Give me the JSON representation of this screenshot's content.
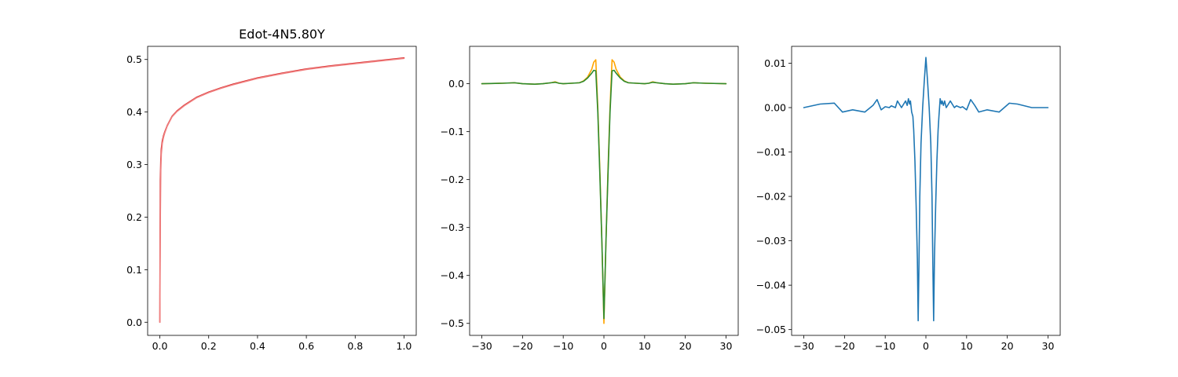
{
  "chart_data": [
    {
      "type": "line",
      "title": "Edot-4N5.80Y",
      "xlim": [
        -0.05,
        1.05
      ],
      "ylim": [
        -0.025,
        0.525
      ],
      "xticks": [
        0.0,
        0.2,
        0.4,
        0.6,
        0.8,
        1.0
      ],
      "yticks": [
        0.0,
        0.1,
        0.2,
        0.3,
        0.4,
        0.5
      ],
      "xtick_labels": [
        "0.0",
        "0.2",
        "0.4",
        "0.6",
        "0.8",
        "1.0"
      ],
      "ytick_labels": [
        "0.0",
        "0.1",
        "0.2",
        "0.3",
        "0.4",
        "0.5"
      ],
      "series": [
        {
          "color": "#d62728",
          "x": [
            0,
            0.001,
            0.002,
            0.004,
            0.006,
            0.01,
            0.015,
            0.02,
            0.03,
            0.05,
            0.07,
            0.1,
            0.15,
            0.2,
            0.25,
            0.3,
            0.4,
            0.5,
            0.6,
            0.7,
            0.8,
            0.9,
            1.0
          ],
          "y": [
            0.0,
            0.18,
            0.27,
            0.31,
            0.33,
            0.345,
            0.355,
            0.362,
            0.374,
            0.392,
            0.402,
            0.413,
            0.428,
            0.438,
            0.446,
            0.453,
            0.465,
            0.474,
            0.482,
            0.488,
            0.493,
            0.498,
            0.503
          ]
        },
        {
          "color": "#f08080",
          "x": [
            0,
            0.002,
            0.004,
            0.006,
            0.01,
            0.015,
            0.02,
            0.03,
            0.05,
            0.07,
            0.1,
            0.15,
            0.2,
            0.25,
            0.3,
            0.4,
            0.5,
            0.6,
            0.7,
            0.8,
            0.9,
            1.0
          ],
          "y": [
            0.0,
            0.2,
            0.29,
            0.32,
            0.34,
            0.352,
            0.36,
            0.373,
            0.391,
            0.401,
            0.412,
            0.427,
            0.437,
            0.445,
            0.452,
            0.464,
            0.473,
            0.481,
            0.487,
            0.492,
            0.497,
            0.502
          ]
        }
      ]
    },
    {
      "type": "line",
      "xlim": [
        -33,
        33
      ],
      "ylim": [
        -0.525,
        0.078
      ],
      "xticks": [
        -30,
        -20,
        -10,
        0,
        10,
        20,
        30
      ],
      "yticks": [
        -0.5,
        -0.4,
        -0.3,
        -0.2,
        -0.1,
        0.0
      ],
      "xtick_labels": [
        "−30",
        "−20",
        "−10",
        "0",
        "10",
        "20",
        "30"
      ],
      "ytick_labels": [
        "−0.5",
        "−0.4",
        "−0.3",
        "−0.2",
        "−0.1",
        "0.0"
      ],
      "series": [
        {
          "color": "#ffa500",
          "x": [
            -30,
            -25,
            -22,
            -20,
            -17,
            -15,
            -13,
            -12,
            -11,
            -10,
            -8,
            -6,
            -5,
            -4,
            -3,
            -2.5,
            -2,
            -1.5,
            -1,
            -0.5,
            0,
            0.5,
            1,
            1.5,
            2,
            2.5,
            3,
            4,
            5,
            6,
            8,
            10,
            11,
            12,
            13,
            15,
            17,
            20,
            22,
            25,
            30
          ],
          "y": [
            0.0,
            0.001,
            0.002,
            0.0,
            -0.001,
            0.0,
            0.002,
            0.004,
            0.001,
            0.0,
            0.001,
            0.002,
            0.006,
            0.014,
            0.03,
            0.045,
            0.05,
            -0.05,
            -0.18,
            -0.33,
            -0.5,
            -0.33,
            -0.18,
            -0.05,
            0.05,
            0.045,
            0.03,
            0.014,
            0.006,
            0.002,
            0.001,
            0.0,
            0.001,
            0.004,
            0.002,
            0.0,
            -0.001,
            0.0,
            0.002,
            0.001,
            0.0
          ]
        },
        {
          "color": "#2e8b2e",
          "x": [
            -30,
            -25,
            -22,
            -20,
            -17,
            -15,
            -13,
            -12,
            -11,
            -10,
            -8,
            -6,
            -5,
            -4,
            -3,
            -2.5,
            -2,
            -1.5,
            -1,
            -0.5,
            0,
            0.5,
            1,
            1.5,
            2,
            2.5,
            3,
            4,
            5,
            6,
            8,
            10,
            11,
            12,
            13,
            15,
            17,
            20,
            22,
            25,
            30
          ],
          "y": [
            0.0,
            0.001,
            0.002,
            0.0,
            -0.001,
            0.0,
            0.002,
            0.003,
            0.001,
            0.0,
            0.001,
            0.002,
            0.005,
            0.012,
            0.022,
            0.028,
            0.027,
            -0.06,
            -0.19,
            -0.33,
            -0.49,
            -0.33,
            -0.19,
            -0.06,
            0.027,
            0.028,
            0.022,
            0.012,
            0.005,
            0.002,
            0.001,
            0.0,
            0.001,
            0.003,
            0.002,
            0.0,
            -0.001,
            0.0,
            0.002,
            0.001,
            0.0
          ]
        }
      ]
    },
    {
      "type": "line",
      "xlim": [
        -33,
        33
      ],
      "ylim": [
        -0.0513,
        0.0138
      ],
      "xticks": [
        -30,
        -20,
        -10,
        0,
        10,
        20,
        30
      ],
      "yticks": [
        -0.05,
        -0.04,
        -0.03,
        -0.02,
        -0.01,
        0.0,
        0.01
      ],
      "xtick_labels": [
        "−30",
        "−20",
        "−10",
        "0",
        "10",
        "20",
        "30"
      ],
      "ytick_labels": [
        "−0.05",
        "−0.04",
        "−0.03",
        "−0.02",
        "−0.01",
        "0.00",
        "0.01"
      ],
      "series": [
        {
          "color": "#1f77b4",
          "x": [
            -30,
            -26,
            -22.5,
            -20.5,
            -18,
            -15,
            -13,
            -12,
            -11,
            -10,
            -9,
            -8.5,
            -7.5,
            -7,
            -6,
            -5,
            -4.6,
            -4.3,
            -4.0,
            -3.8,
            -3.5,
            -3.2,
            -3.0,
            -2.7,
            -2.4,
            -2.1,
            -1.9,
            -1.7,
            -1.5,
            -1.2,
            -0.8,
            -0.4,
            0,
            0.4,
            0.8,
            1.2,
            1.5,
            1.7,
            1.9,
            2.1,
            2.4,
            2.7,
            3.0,
            3.2,
            3.5,
            3.8,
            4.0,
            4.3,
            4.6,
            5,
            6,
            7,
            7.5,
            8.5,
            9,
            10,
            11,
            12,
            13,
            15,
            18,
            20.5,
            22.5,
            26,
            30
          ],
          "y": [
            0.0,
            0.0008,
            0.001,
            -0.001,
            -0.0005,
            -0.001,
            0.0005,
            0.0018,
            -0.0005,
            0.0002,
            0.0,
            0.0004,
            0.0,
            0.0015,
            0.0,
            0.0015,
            0.0005,
            0.002,
            0.0008,
            0.0015,
            -0.001,
            -0.002,
            -0.005,
            -0.012,
            -0.022,
            -0.034,
            -0.048,
            -0.035,
            -0.02,
            -0.008,
            0.0,
            0.006,
            0.0113,
            0.006,
            0.0,
            -0.008,
            -0.02,
            -0.035,
            -0.048,
            -0.034,
            -0.022,
            -0.012,
            -0.005,
            -0.002,
            0.002,
            0.0008,
            0.0015,
            0.0005,
            0.0015,
            0.0,
            0.0015,
            0.0,
            0.0004,
            0.0,
            0.0002,
            -0.0005,
            0.0018,
            0.0005,
            -0.001,
            -0.0005,
            -0.001,
            0.001,
            0.0008,
            0.0,
            0.0
          ]
        }
      ]
    }
  ]
}
